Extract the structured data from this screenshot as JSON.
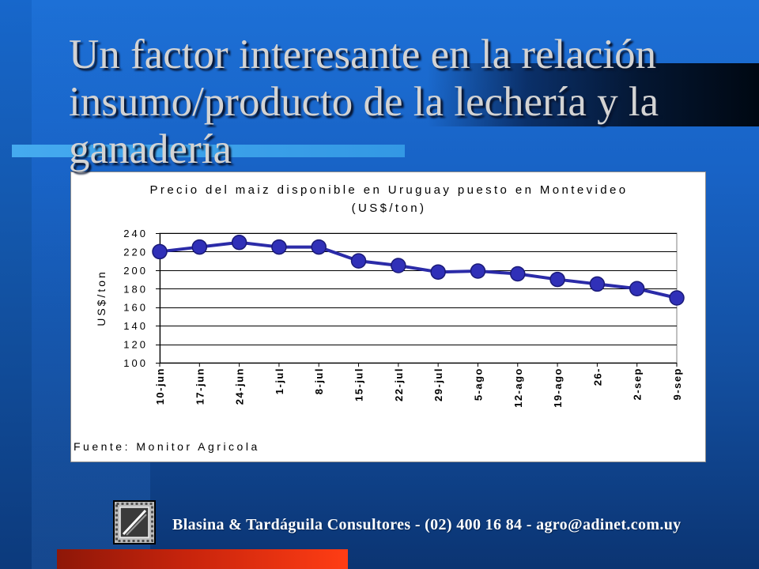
{
  "slide": {
    "title": [
      "Un factor interesante en la relación",
      "insumo/producto de la lechería y la",
      "ganadería"
    ],
    "footer_text": "Blasina & Tardáguila Consultores - (02) 400 16 84 - agro@adinet.com.uy",
    "logo_icon": "framed-picture-icon"
  },
  "colors": {
    "background": "#1863c6",
    "title_text": "#d3d3d3",
    "footer_text": "#ffffff",
    "accent_light_blue": "#3aa2ea",
    "accent_red": "#ff3d14",
    "accent_dark": "#000812",
    "series_line": "#2b2ba8",
    "marker_fill": "#3030b8",
    "marker_edge": "#1a1a78"
  },
  "chart_data": {
    "type": "line",
    "title": "Precio del maiz disponible en Uruguay puesto en Montevideo",
    "subtitle": "(US$/ton)",
    "xlabel": "",
    "ylabel": "US$/ton",
    "source": "Fuente: Monitor Agricola",
    "categories": [
      "10-jun",
      "17-jun",
      "24-jun",
      "1-jul",
      "8-jul",
      "15-jul",
      "22-jul",
      "29-jul",
      "5-ago",
      "12-ago",
      "19-ago",
      "26-",
      "2-sep",
      "9-sep"
    ],
    "values": [
      220,
      225,
      230,
      225,
      225,
      210,
      205,
      198,
      199,
      196,
      190,
      185,
      180,
      170
    ],
    "ylim": [
      100,
      240
    ],
    "yticks": [
      100,
      120,
      140,
      160,
      180,
      200,
      220,
      240
    ],
    "grid": true
  }
}
